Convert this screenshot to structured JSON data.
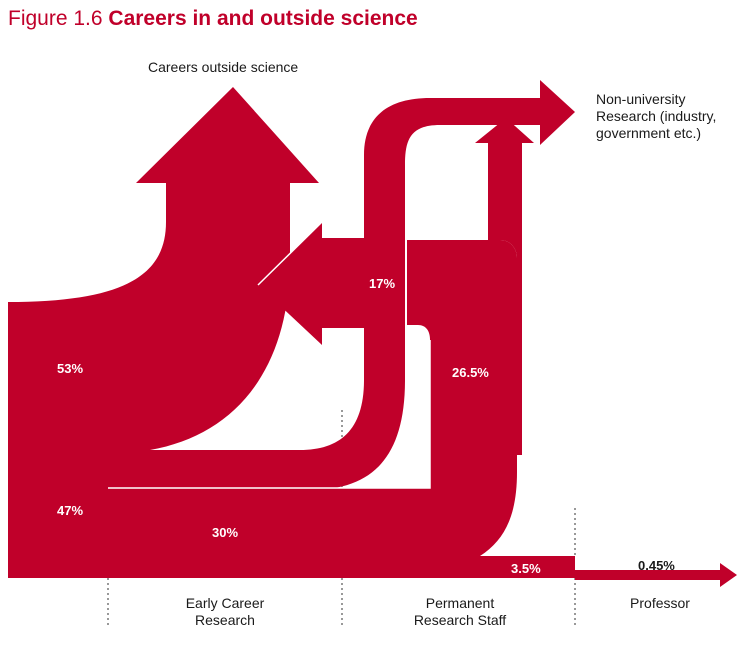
{
  "figure": {
    "number": "Figure 1.6",
    "title": "Careers in and outside science"
  },
  "destinations": {
    "outside_science": "Careers outside science",
    "non_university_line1": "Non-university",
    "non_university_line2": "Research (industry,",
    "non_university_line3": "government etc.)"
  },
  "stages": {
    "early_line1": "Early Career",
    "early_line2": "Research",
    "permanent_line1": "Permanent",
    "permanent_line2": "Research Staff",
    "professor": "Professor"
  },
  "flows": {
    "to_outside": "53%",
    "stay_in_science": "47%",
    "early_to_permanent": "30%",
    "early_to_non_university": "17%",
    "permanent_to_non_university": "26.5%",
    "permanent_to_professor_band": "3.5%",
    "professor": "0.45%"
  },
  "colors": {
    "flow": "#c0002a",
    "title": "#c0002a"
  }
}
